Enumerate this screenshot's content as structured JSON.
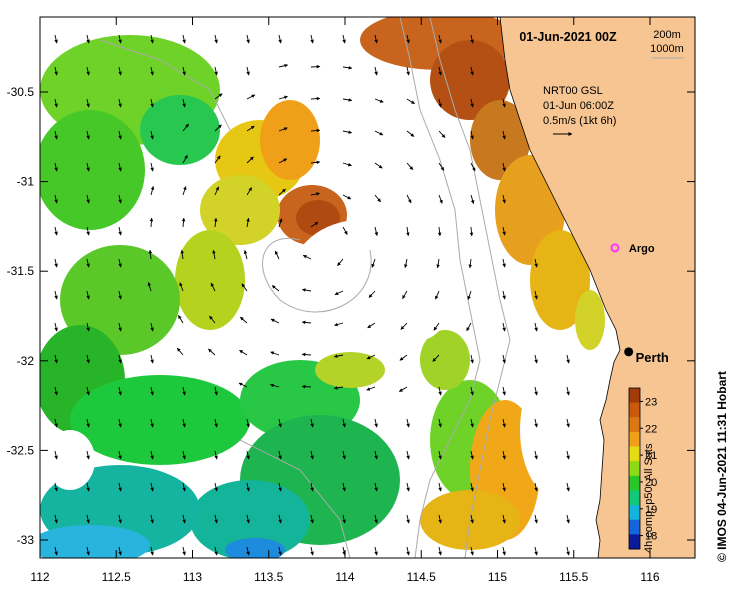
{
  "title": "01-Jun-2021 00Z",
  "depth_legend": [
    "200m",
    "1000m"
  ],
  "current_legend": {
    "source": "NRT00 GSL",
    "time": "01-Jun 06:00Z",
    "scale": "0.5m/s (1kt 6h)"
  },
  "markers": {
    "argo": {
      "label": "Argo",
      "lon": 115.77,
      "lat": -31.37,
      "color": "#ff33ff"
    },
    "perth": {
      "label": "Perth",
      "lon": 115.86,
      "lat": -31.95
    }
  },
  "axes": {
    "x_ticks": [
      "112",
      "112.5",
      "113",
      "113.5",
      "114",
      "114.5",
      "115",
      "115.5",
      "116"
    ],
    "y_ticks": [
      "-30.5",
      "-31",
      "-31.5",
      "-32",
      "-32.5",
      "-33"
    ],
    "lon_range": [
      112,
      116.3
    ],
    "lat_range": [
      -33.1,
      -30.1
    ]
  },
  "colorbar": {
    "ticks": [
      "23",
      "22",
      "21",
      "20",
      "19",
      "18"
    ],
    "label": "4h comp, p50, All Sats",
    "range": [
      17.5,
      23.5
    ],
    "colors": [
      "#0a1a9a",
      "#1464dc",
      "#14b4dc",
      "#14c87a",
      "#28c828",
      "#8cdc14",
      "#e6dc14",
      "#f0a018",
      "#dc7814",
      "#c85a0a",
      "#a03c0a"
    ]
  },
  "credit": "© IMOS 04-Jun-2021 11:31 Hobart",
  "colors": {
    "land": "#f7c592",
    "coast": "#000000",
    "isobath": "#aaaaaa"
  }
}
